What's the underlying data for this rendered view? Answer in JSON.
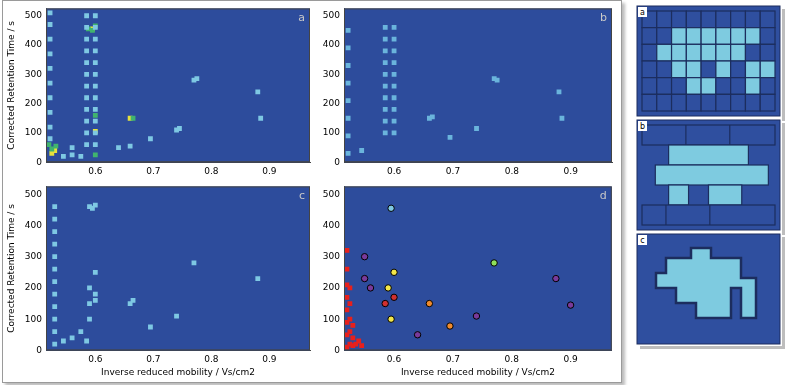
{
  "chart_data": [
    {
      "type": "scatter",
      "title": "a",
      "ylabel": "Corrected Retention Time / s",
      "xlim": [
        0.515,
        0.97
      ],
      "xticks": [
        0.6,
        0.7,
        0.8,
        0.9
      ],
      "ylim": [
        0,
        525
      ],
      "yticks": [
        0,
        100,
        200,
        300,
        400,
        500
      ],
      "grid": false,
      "series": [
        {
          "color": "#7ec8e3",
          "marker": "square",
          "x": [
            0.585,
            0.585,
            0.585,
            0.585,
            0.585,
            0.585,
            0.585,
            0.585,
            0.585,
            0.585,
            0.585,
            0.585,
            0.6,
            0.6,
            0.6,
            0.6,
            0.6,
            0.6,
            0.6,
            0.6,
            0.6,
            0.6,
            0.6,
            0.6,
            0.522,
            0.522,
            0.522,
            0.522,
            0.522,
            0.522,
            0.522,
            0.522,
            0.522,
            0.522,
            0.545,
            0.56,
            0.575,
            0.56,
            0.695,
            0.74,
            0.745,
            0.77,
            0.775,
            0.88,
            0.885,
            0.64,
            0.66
          ],
          "values": [
            60,
            100,
            140,
            180,
            220,
            260,
            300,
            340,
            380,
            420,
            460,
            500,
            60,
            100,
            140,
            180,
            220,
            260,
            300,
            340,
            380,
            420,
            460,
            500,
            80,
            120,
            170,
            220,
            270,
            320,
            370,
            420,
            470,
            510,
            20,
            25,
            20,
            50,
            80,
            110,
            115,
            280,
            285,
            240,
            150,
            50,
            55
          ]
        },
        {
          "color": "#40b46e",
          "marker": "square",
          "x": [
            0.525,
            0.532,
            0.52,
            0.595,
            0.588,
            0.6,
            0.6,
            0.665,
            0.6
          ],
          "values": [
            45,
            55,
            60,
            450,
            455,
            465,
            160,
            150,
            25
          ]
        },
        {
          "color": "#e6e23c",
          "marker": "square",
          "x": [
            0.525,
            0.53,
            0.595,
            0.66,
            0.6
          ],
          "values": [
            30,
            40,
            455,
            150,
            105
          ]
        }
      ]
    },
    {
      "type": "scatter",
      "title": "b",
      "xlim": [
        0.515,
        0.97
      ],
      "xticks": [
        0.6,
        0.7,
        0.8,
        0.9
      ],
      "ylim": [
        0,
        525
      ],
      "yticks": [
        0,
        100,
        200,
        300,
        400,
        500
      ],
      "grid": false,
      "series": [
        {
          "color": "#6ab4dc",
          "marker": "square",
          "x": [
            0.585,
            0.585,
            0.585,
            0.585,
            0.585,
            0.585,
            0.585,
            0.585,
            0.585,
            0.585,
            0.6,
            0.6,
            0.6,
            0.6,
            0.6,
            0.6,
            0.6,
            0.6,
            0.6,
            0.6,
            0.522,
            0.522,
            0.522,
            0.522,
            0.522,
            0.522,
            0.522,
            0.522,
            0.66,
            0.665,
            0.695,
            0.74,
            0.77,
            0.775,
            0.88,
            0.885,
            0.545
          ],
          "values": [
            100,
            140,
            180,
            220,
            260,
            300,
            340,
            380,
            420,
            460,
            100,
            140,
            180,
            220,
            260,
            300,
            340,
            380,
            420,
            460,
            30,
            90,
            150,
            210,
            270,
            330,
            390,
            450,
            150,
            155,
            85,
            115,
            285,
            280,
            240,
            150,
            40
          ]
        }
      ]
    },
    {
      "type": "scatter",
      "title": "c",
      "xlabel": "Inverse reduced mobility / Vs/cm2",
      "ylabel": "Corrected Retention Time / s",
      "xlim": [
        0.515,
        0.97
      ],
      "xticks": [
        0.6,
        0.7,
        0.8,
        0.9
      ],
      "ylim": [
        0,
        525
      ],
      "yticks": [
        0,
        100,
        200,
        300,
        400,
        500
      ],
      "grid": false,
      "series": [
        {
          "color": "#7ec8e3",
          "marker": "square",
          "x": [
            0.53,
            0.53,
            0.53,
            0.53,
            0.53,
            0.53,
            0.53,
            0.53,
            0.53,
            0.53,
            0.53,
            0.53,
            0.545,
            0.56,
            0.575,
            0.59,
            0.59,
            0.59,
            0.6,
            0.6,
            0.6,
            0.595,
            0.59,
            0.6,
            0.66,
            0.665,
            0.695,
            0.74,
            0.77,
            0.88,
            0.585
          ],
          "values": [
            20,
            60,
            100,
            140,
            180,
            220,
            260,
            300,
            340,
            380,
            420,
            460,
            30,
            40,
            60,
            100,
            150,
            200,
            180,
            250,
            160,
            455,
            460,
            465,
            150,
            160,
            75,
            110,
            280,
            230,
            30
          ]
        }
      ]
    },
    {
      "type": "scatter",
      "title": "d",
      "xlabel": "Inverse reduced mobility / Vs/cm2",
      "xlim": [
        0.515,
        0.97
      ],
      "xticks": [
        0.6,
        0.7,
        0.8,
        0.9
      ],
      "ylim": [
        0,
        525
      ],
      "yticks": [
        0,
        100,
        200,
        300,
        400,
        500
      ],
      "grid": false,
      "series": [
        {
          "color": "#e8201c",
          "marker": "square",
          "x": [
            0.52,
            0.52,
            0.52,
            0.52,
            0.52,
            0.52,
            0.52,
            0.52,
            0.525,
            0.525,
            0.525,
            0.525,
            0.53,
            0.53,
            0.535,
            0.54,
            0.545,
            0.53,
            0.525
          ],
          "values": [
            10,
            50,
            90,
            130,
            170,
            210,
            260,
            320,
            20,
            60,
            100,
            150,
            15,
            40,
            20,
            30,
            15,
            80,
            200
          ]
        },
        {
          "color": "#7ec8e3",
          "marker": "circle",
          "x": [
            0.595
          ],
          "values": [
            455
          ]
        },
        {
          "color": "#f08a2c",
          "marker": "circle",
          "x": [
            0.66,
            0.695
          ],
          "values": [
            150,
            78
          ]
        },
        {
          "color": "#8ee05a",
          "marker": "circle",
          "x": [
            0.77
          ],
          "values": [
            280
          ]
        },
        {
          "color": "#f2e64a",
          "marker": "circle",
          "x": [
            0.6,
            0.59,
            0.595
          ],
          "values": [
            250,
            200,
            100
          ]
        },
        {
          "color": "#d03030",
          "marker": "circle",
          "x": [
            0.6,
            0.585
          ],
          "values": [
            170,
            150
          ]
        },
        {
          "color": "#7a3a9a",
          "marker": "circle",
          "x": [
            0.74,
            0.875,
            0.9,
            0.64,
            0.56,
            0.55,
            0.55
          ],
          "values": [
            110,
            230,
            145,
            50,
            200,
            230,
            300
          ]
        }
      ]
    }
  ],
  "schematic": {
    "panels": [
      "a",
      "b",
      "c"
    ]
  }
}
